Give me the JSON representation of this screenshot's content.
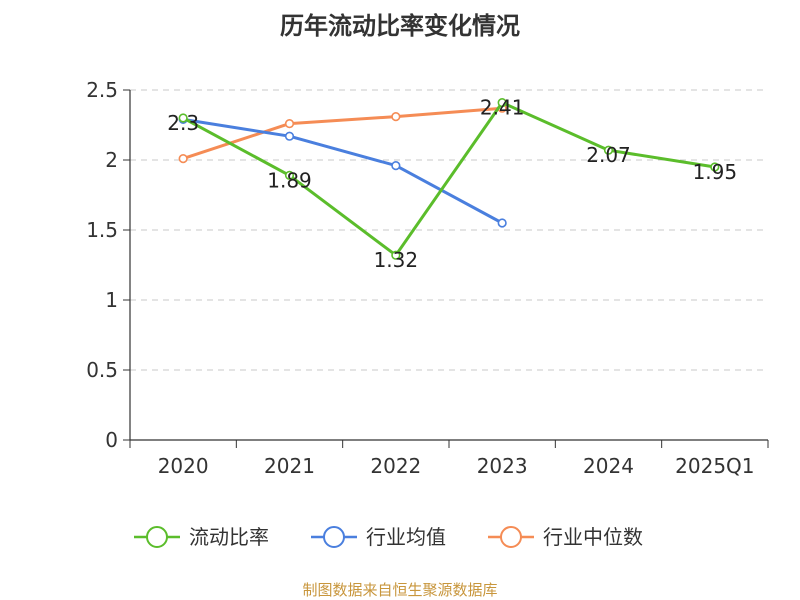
{
  "chart_data": {
    "type": "line",
    "title": "历年流动比率变化情况",
    "categories": [
      "2020",
      "2021",
      "2022",
      "2023",
      "2024",
      "2025Q1"
    ],
    "ylim": [
      0,
      2.5
    ],
    "yticks": [
      "0",
      "0.5",
      "1",
      "1.5",
      "2",
      "2.5"
    ],
    "grid": true,
    "legend_position": "bottom",
    "series": [
      {
        "name": "流动比率",
        "color": "#5bbd2b",
        "values": [
          2.3,
          1.89,
          1.32,
          2.41,
          2.07,
          1.95
        ],
        "show_labels": true
      },
      {
        "name": "行业均值",
        "color": "#4a7fde",
        "values": [
          2.29,
          2.17,
          1.96,
          1.55,
          null,
          null
        ],
        "show_labels": false
      },
      {
        "name": "行业中位数",
        "color": "#f58c55",
        "values": [
          2.01,
          2.26,
          2.31,
          2.37,
          null,
          null
        ],
        "show_labels": false
      }
    ],
    "labels": [
      "2.3",
      "1.89",
      "1.32",
      "2.41",
      "2.07",
      "1.95"
    ]
  },
  "source_note": "制图数据来自恒生聚源数据库"
}
